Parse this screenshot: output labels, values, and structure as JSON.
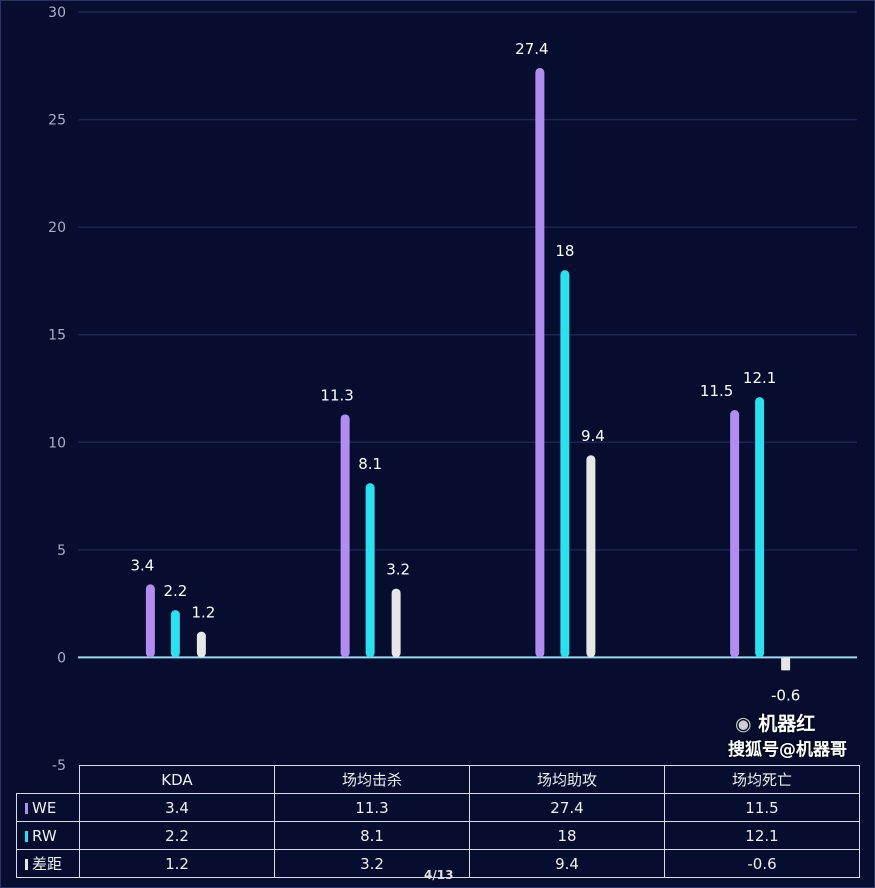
{
  "chart_data": {
    "type": "bar",
    "categories": [
      "KDA",
      "场均击杀",
      "场均助攻",
      "场均死亡"
    ],
    "series": [
      {
        "name": "WE",
        "values": [
          3.4,
          11.3,
          27.4,
          11.5
        ],
        "color": "#b28cf0"
      },
      {
        "name": "RW",
        "values": [
          2.2,
          8.1,
          18,
          12.1
        ],
        "color": "#2de0f0"
      },
      {
        "name": "差距",
        "values": [
          1.2,
          3.2,
          9.4,
          -0.6
        ],
        "color": "#e6e6e6"
      }
    ],
    "ylim": [
      -5,
      30
    ],
    "yticks": [
      -5,
      0,
      5,
      10,
      15,
      20,
      25,
      30
    ],
    "grid": true,
    "legend": "data-table-bottom",
    "table": {
      "rows": [
        {
          "label": "WE",
          "cells": [
            "3.4",
            "11.3",
            "27.4",
            "11.5"
          ]
        },
        {
          "label": "RW",
          "cells": [
            "2.2",
            "8.1",
            "18",
            "12.1"
          ]
        },
        {
          "label": "差距",
          "cells": [
            "1.2",
            "3.2",
            "9.4",
            "-0.6"
          ]
        }
      ]
    }
  },
  "watermark": {
    "line1": "机器红",
    "line2": "搜狐号@机器哥"
  },
  "page_indicator": "4/13"
}
